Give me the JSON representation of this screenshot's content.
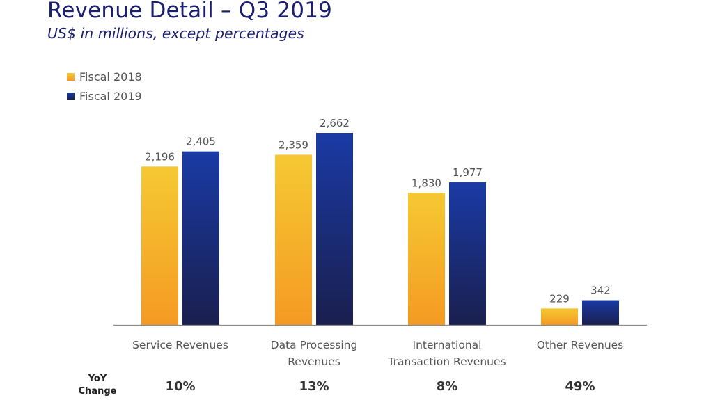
{
  "slide": {
    "title": "Revenue Detail – Q3 2019",
    "subtitle": "US$ in millions, except percentages",
    "yoy_label": "YoY\nChange"
  },
  "colors": {
    "title": "#1a1f71",
    "fiscal_2018_top": "#f5c933",
    "fiscal_2018_bottom": "#f59a23",
    "fiscal_2019_top": "#1a3aa5",
    "fiscal_2019_bottom": "#1a1f4e",
    "axis": "#8a8a8a",
    "text": "#555555"
  },
  "chart_data": {
    "type": "bar",
    "categories": [
      "Service Revenues",
      "Data Processing Revenues",
      "International Transaction Revenues",
      "Other Revenues"
    ],
    "category_lines": [
      [
        "Service Revenues"
      ],
      [
        "Data Processing",
        "Revenues"
      ],
      [
        "International",
        "Transaction Revenues"
      ],
      [
        "Other Revenues"
      ]
    ],
    "series": [
      {
        "name": "Fiscal 2018",
        "values": [
          2196,
          2359,
          1830,
          229
        ],
        "labels": [
          "2,196",
          "2,359",
          "1,830",
          "229"
        ]
      },
      {
        "name": "Fiscal 2019",
        "values": [
          2405,
          2662,
          1977,
          342
        ],
        "labels": [
          "2,405",
          "2,662",
          "1,977",
          "342"
        ]
      }
    ],
    "yoy_change": [
      "10%",
      "13%",
      "8%",
      "49%"
    ],
    "legend_position": "top-left",
    "grid": false
  }
}
